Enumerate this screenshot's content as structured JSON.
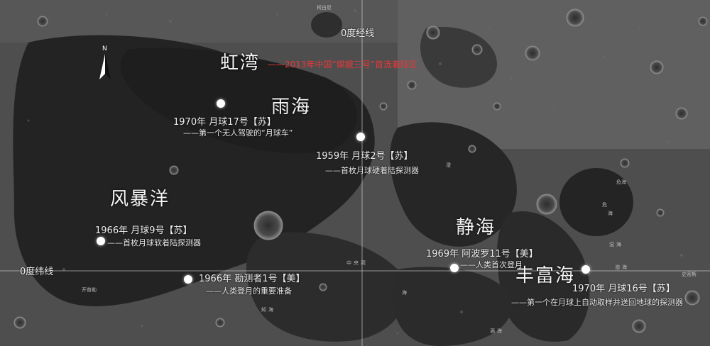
{
  "axes": {
    "meridian_label": "0度经线",
    "equator_label": "0度纬线"
  },
  "compass": {
    "label": "N"
  },
  "maria": [
    {
      "id": "sinus-iridum",
      "label": "虹湾"
    },
    {
      "id": "mare-imbrium",
      "label": "雨海"
    },
    {
      "id": "oceanus-procellarum",
      "label": "风暴洋"
    },
    {
      "id": "mare-tranquillitatis",
      "label": "静海"
    },
    {
      "id": "mare-fecunditatis",
      "label": "丰富海"
    }
  ],
  "chang_e": {
    "text": "——2013年中国“嫦娥三号”首选着陆区"
  },
  "missions": [
    {
      "id": "luna17",
      "title": "1970年  月球17号【苏】",
      "desc": "——第一个无人驾驶的“月球车”"
    },
    {
      "id": "luna2",
      "title": "1959年  月球2号【苏】",
      "desc": "——首枚月球硬着陆探测器"
    },
    {
      "id": "luna9",
      "title": "1966年  月球9号【苏】",
      "desc": "——首枚月球软着陆探测器"
    },
    {
      "id": "surveyor1",
      "title": "1966年  勘测者1号【美】",
      "desc": "——人类登月的重要准备"
    },
    {
      "id": "apollo11",
      "title": "1969年  阿波罗11号【美】",
      "desc": "——人类首次登月"
    },
    {
      "id": "luna16",
      "title": "1970年  月球16号【苏】",
      "desc": "——第一个在月球上自动取样并送回地球的探测器"
    }
  ],
  "small_labels": [
    "柯白尼",
    "危",
    "海",
    "湿",
    "海",
    "知",
    "海",
    "史密斯",
    "酒",
    "海",
    "中",
    "央",
    "湾",
    "澄",
    "海",
    "泡",
    "海",
    "危海",
    "开普勒"
  ]
}
